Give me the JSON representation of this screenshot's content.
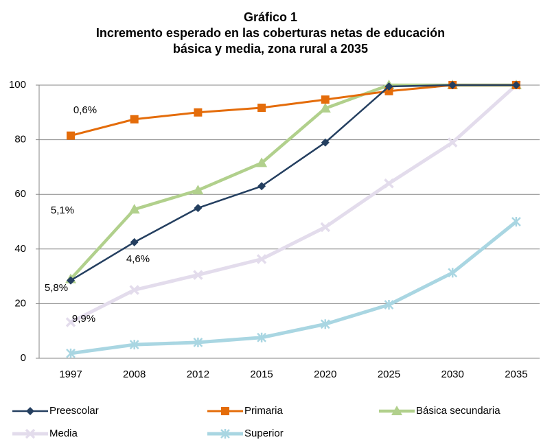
{
  "chart_data": {
    "type": "line",
    "title_lines": [
      "Gráfico 1",
      "Incremento esperado en las coberturas netas de educación",
      "básica y media, zona rural a 2035"
    ],
    "categories": [
      "1997",
      "2008",
      "2012",
      "2015",
      "2020",
      "2025",
      "2030",
      "2035"
    ],
    "series": [
      {
        "name": "Preescolar",
        "color": "#243f60",
        "marker": "diamond",
        "width": 2.5,
        "values": [
          28.5,
          42.5,
          55,
          63,
          79,
          99.5,
          100,
          100
        ]
      },
      {
        "name": "Primaria",
        "color": "#e46c0a",
        "marker": "square",
        "width": 3,
        "values": [
          81.5,
          87.5,
          90,
          91.7,
          94.7,
          97.8,
          100,
          100
        ]
      },
      {
        "name": "Básica secundaria",
        "color": "#b1d08c",
        "marker": "triangle",
        "width": 4.5,
        "values": [
          29,
          54.5,
          61.5,
          71.5,
          91.5,
          100,
          100,
          100
        ]
      },
      {
        "name": "Media",
        "color": "#e3dcec",
        "marker": "x",
        "width": 5,
        "values": [
          13.2,
          25,
          30.5,
          36.3,
          48,
          64,
          79,
          100
        ]
      },
      {
        "name": "Superior",
        "color": "#a9d6e2",
        "marker": "asterisk",
        "width": 5,
        "values": [
          1.8,
          5,
          5.8,
          7.6,
          12.5,
          19.6,
          31.3,
          50
        ]
      }
    ],
    "annotations": [
      "0,6%",
      "5,1%",
      "4,6%",
      "5,8%",
      "9,9%"
    ],
    "ylim": [
      0,
      100
    ],
    "yticks": [
      0,
      20,
      40,
      60,
      80,
      100
    ],
    "grid": true
  }
}
